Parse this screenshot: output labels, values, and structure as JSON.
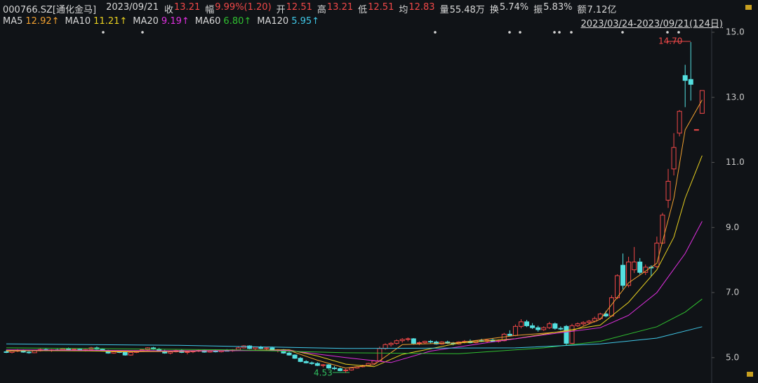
{
  "header": {
    "symbol": "000766.SZ[通化金马]",
    "date": "2023/09/21",
    "stats": [
      {
        "label": "收",
        "value": "13.21",
        "color": "#f04848"
      },
      {
        "label": "幅",
        "value": "9.99%(1.20)",
        "color": "#f04848"
      },
      {
        "label": "开",
        "value": "12.51",
        "color": "#f04848"
      },
      {
        "label": "高",
        "value": "13.21",
        "color": "#f04848"
      },
      {
        "label": "低",
        "value": "12.51",
        "color": "#f04848"
      },
      {
        "label": "均",
        "value": "12.83",
        "color": "#f04848"
      },
      {
        "label": "量",
        "value": "55.48万",
        "color": "#d8d8d8"
      },
      {
        "label": "换",
        "value": "5.74%",
        "color": "#d8d8d8"
      },
      {
        "label": "振",
        "value": "5.83%",
        "color": "#d8d8d8"
      },
      {
        "label": "额",
        "value": "7.12亿",
        "color": "#d8d8d8"
      }
    ]
  },
  "chart_data": {
    "type": "candlestick",
    "range_label": "2023/03/24-2023/09/21(124日)",
    "ylim": [
      4.22,
      15.13
    ],
    "yticks": [
      {
        "value": 15,
        "label": "15.0"
      },
      {
        "value": 13,
        "label": "13.0"
      },
      {
        "value": 11,
        "label": "11.0"
      },
      {
        "value": 9,
        "label": "9.0"
      },
      {
        "value": 7,
        "label": "7.0"
      },
      {
        "value": 5,
        "label": "5.0"
      }
    ],
    "up_color": "#f04848",
    "down_color": "#54e0e0",
    "annotations": [
      "14.70",
      "4.53"
    ],
    "ohlc": [
      [
        5.18,
        5.24,
        5.14,
        5.16
      ],
      [
        5.16,
        5.22,
        5.13,
        5.2
      ],
      [
        5.2,
        5.26,
        5.17,
        5.22
      ],
      [
        5.22,
        5.25,
        5.15,
        5.17
      ],
      [
        5.17,
        5.2,
        5.12,
        5.15
      ],
      [
        5.15,
        5.22,
        5.14,
        5.21
      ],
      [
        5.21,
        5.28,
        5.19,
        5.25
      ],
      [
        5.25,
        5.29,
        5.2,
        5.22
      ],
      [
        5.22,
        5.26,
        5.18,
        5.24
      ],
      [
        5.24,
        5.27,
        5.2,
        5.23
      ],
      [
        5.23,
        5.3,
        5.21,
        5.27
      ],
      [
        5.27,
        5.31,
        5.22,
        5.24
      ],
      [
        5.24,
        5.28,
        5.2,
        5.26
      ],
      [
        5.26,
        5.29,
        5.21,
        5.22
      ],
      [
        5.22,
        5.27,
        5.19,
        5.25
      ],
      [
        5.25,
        5.33,
        5.23,
        5.3
      ],
      [
        5.3,
        5.34,
        5.24,
        5.26
      ],
      [
        5.26,
        5.29,
        5.2,
        5.22
      ],
      [
        5.22,
        5.24,
        5.12,
        5.14
      ],
      [
        5.14,
        5.2,
        5.12,
        5.18
      ],
      [
        5.18,
        5.22,
        5.14,
        5.16
      ],
      [
        5.16,
        5.18,
        5.06,
        5.08
      ],
      [
        5.08,
        5.18,
        5.06,
        5.16
      ],
      [
        5.16,
        5.22,
        5.14,
        5.2
      ],
      [
        5.2,
        5.26,
        5.18,
        5.24
      ],
      [
        5.24,
        5.32,
        5.22,
        5.3
      ],
      [
        5.3,
        5.33,
        5.24,
        5.26
      ],
      [
        5.26,
        5.3,
        5.18,
        5.2
      ],
      [
        5.2,
        5.24,
        5.12,
        5.14
      ],
      [
        5.14,
        5.2,
        5.1,
        5.18
      ],
      [
        5.18,
        5.24,
        5.16,
        5.22
      ],
      [
        5.22,
        5.25,
        5.14,
        5.16
      ],
      [
        5.16,
        5.2,
        5.1,
        5.18
      ],
      [
        5.18,
        5.22,
        5.14,
        5.2
      ],
      [
        5.2,
        5.25,
        5.17,
        5.22
      ],
      [
        5.22,
        5.24,
        5.15,
        5.17
      ],
      [
        5.17,
        5.22,
        5.15,
        5.2
      ],
      [
        5.2,
        5.24,
        5.16,
        5.18
      ],
      [
        5.18,
        5.24,
        5.16,
        5.22
      ],
      [
        5.22,
        5.26,
        5.19,
        5.21
      ],
      [
        5.21,
        5.26,
        5.18,
        5.24
      ],
      [
        5.24,
        5.33,
        5.22,
        5.3
      ],
      [
        5.3,
        5.38,
        5.28,
        5.36
      ],
      [
        5.36,
        5.38,
        5.26,
        5.28
      ],
      [
        5.28,
        5.34,
        5.24,
        5.32
      ],
      [
        5.32,
        5.36,
        5.26,
        5.28
      ],
      [
        5.28,
        5.32,
        5.22,
        5.3
      ],
      [
        5.3,
        5.34,
        5.2,
        5.22
      ],
      [
        5.22,
        5.26,
        5.16,
        5.24
      ],
      [
        5.24,
        5.26,
        5.12,
        5.14
      ],
      [
        5.14,
        5.18,
        5.06,
        5.08
      ],
      [
        5.08,
        5.1,
        4.96,
        4.98
      ],
      [
        4.98,
        5.02,
        4.86,
        4.88
      ],
      [
        4.88,
        4.92,
        4.82,
        4.84
      ],
      [
        4.84,
        4.88,
        4.78,
        4.82
      ],
      [
        4.82,
        4.86,
        4.74,
        4.76
      ],
      [
        4.76,
        4.8,
        4.7,
        4.78
      ],
      [
        4.78,
        4.8,
        4.66,
        4.68
      ],
      [
        4.68,
        4.74,
        4.62,
        4.66
      ],
      [
        4.66,
        4.7,
        4.58,
        4.6
      ],
      [
        4.6,
        4.66,
        4.53,
        4.62
      ],
      [
        4.62,
        4.7,
        4.6,
        4.68
      ],
      [
        4.68,
        4.74,
        4.66,
        4.72
      ],
      [
        4.72,
        4.78,
        4.7,
        4.76
      ],
      [
        4.76,
        4.84,
        4.74,
        4.82
      ],
      [
        4.82,
        4.92,
        4.8,
        4.9
      ],
      [
        4.9,
        5.34,
        4.88,
        5.28
      ],
      [
        5.28,
        5.44,
        5.24,
        5.4
      ],
      [
        5.4,
        5.48,
        5.34,
        5.44
      ],
      [
        5.44,
        5.56,
        5.4,
        5.52
      ],
      [
        5.52,
        5.6,
        5.46,
        5.56
      ],
      [
        5.56,
        5.62,
        5.5,
        5.58
      ],
      [
        5.58,
        5.6,
        5.4,
        5.44
      ],
      [
        5.44,
        5.5,
        5.38,
        5.46
      ],
      [
        5.46,
        5.52,
        5.42,
        5.5
      ],
      [
        5.5,
        5.54,
        5.44,
        5.48
      ],
      [
        5.48,
        5.52,
        5.4,
        5.42
      ],
      [
        5.42,
        5.5,
        5.4,
        5.48
      ],
      [
        5.48,
        5.52,
        5.42,
        5.44
      ],
      [
        5.44,
        5.48,
        5.38,
        5.42
      ],
      [
        5.42,
        5.5,
        5.4,
        5.48
      ],
      [
        5.48,
        5.54,
        5.44,
        5.5
      ],
      [
        5.5,
        5.56,
        5.44,
        5.46
      ],
      [
        5.46,
        5.54,
        5.44,
        5.52
      ],
      [
        5.52,
        5.58,
        5.48,
        5.5
      ],
      [
        5.5,
        5.56,
        5.46,
        5.54
      ],
      [
        5.54,
        5.6,
        5.48,
        5.5
      ],
      [
        5.5,
        5.56,
        5.46,
        5.52
      ],
      [
        5.52,
        5.76,
        5.5,
        5.72
      ],
      [
        5.72,
        5.84,
        5.66,
        5.68
      ],
      [
        5.68,
        6.02,
        5.66,
        5.96
      ],
      [
        5.96,
        6.18,
        5.9,
        6.1
      ],
      [
        6.1,
        6.16,
        5.94,
        5.98
      ],
      [
        5.98,
        6.06,
        5.88,
        5.92
      ],
      [
        5.92,
        5.98,
        5.8,
        5.86
      ],
      [
        5.86,
        5.96,
        5.82,
        5.92
      ],
      [
        5.92,
        6.1,
        5.88,
        6.04
      ],
      [
        6.04,
        6.08,
        5.86,
        5.9
      ],
      [
        5.9,
        5.96,
        5.84,
        5.88
      ],
      [
        5.96,
        6.0,
        5.38,
        5.44
      ],
      [
        5.44,
        6.04,
        5.42,
        5.98
      ],
      [
        5.98,
        6.08,
        5.94,
        6.04
      ],
      [
        6.04,
        6.12,
        5.98,
        6.08
      ],
      [
        6.08,
        6.16,
        6.02,
        6.12
      ],
      [
        6.12,
        6.26,
        6.08,
        6.2
      ],
      [
        6.2,
        6.38,
        6.16,
        6.34
      ],
      [
        6.34,
        6.44,
        6.24,
        6.28
      ],
      [
        6.28,
        6.92,
        6.26,
        6.84
      ],
      [
        6.84,
        7.56,
        6.8,
        7.52
      ],
      [
        7.84,
        8.2,
        7.1,
        7.22
      ],
      [
        7.22,
        8.1,
        7.16,
        7.94
      ],
      [
        7.7,
        8.4,
        7.6,
        7.94
      ],
      [
        7.94,
        8.06,
        7.56,
        7.62
      ],
      [
        7.62,
        7.86,
        7.54,
        7.78
      ],
      [
        7.78,
        7.84,
        7.5,
        7.76
      ],
      [
        7.8,
        8.72,
        7.76,
        8.52
      ],
      [
        8.52,
        9.45,
        8.5,
        9.38
      ],
      [
        9.84,
        10.8,
        9.6,
        10.42
      ],
      [
        10.8,
        11.9,
        10.6,
        11.46
      ],
      [
        11.9,
        12.61,
        11.8,
        12.57
      ],
      [
        13.67,
        14.0,
        12.7,
        13.52
      ],
      [
        13.55,
        14.7,
        12.9,
        13.4
      ],
      [
        12.01,
        12.01,
        12.01,
        12.01
      ],
      [
        12.51,
        13.21,
        12.51,
        13.21
      ]
    ],
    "series": [
      {
        "name": "MA5",
        "legend_value": "12.92↑",
        "color": "#f0a030",
        "x": [
          0,
          10,
          20,
          30,
          40,
          50,
          55,
          60,
          65,
          70,
          80,
          90,
          100,
          105,
          110,
          115,
          118,
          120,
          123
        ],
        "values": [
          5.2,
          5.24,
          5.18,
          5.19,
          5.22,
          5.22,
          4.92,
          4.68,
          4.78,
          5.4,
          5.46,
          5.68,
          5.82,
          6.18,
          7.3,
          7.9,
          9.9,
          12.0,
          12.92
        ]
      },
      {
        "name": "MA10",
        "legend_value": "11.21↑",
        "color": "#e8d020",
        "x": [
          0,
          20,
          40,
          50,
          55,
          60,
          65,
          70,
          80,
          90,
          100,
          105,
          110,
          115,
          118,
          120,
          123
        ],
        "values": [
          5.22,
          5.2,
          5.22,
          5.24,
          5.05,
          4.8,
          4.72,
          5.1,
          5.45,
          5.58,
          5.86,
          6.0,
          6.7,
          7.7,
          8.7,
          9.9,
          11.21
        ]
      },
      {
        "name": "MA20",
        "legend_value": "9.19↑",
        "color": "#e030e0",
        "x": [
          0,
          30,
          50,
          60,
          68,
          75,
          85,
          95,
          105,
          110,
          115,
          120,
          123
        ],
        "values": [
          5.24,
          5.21,
          5.22,
          5.0,
          4.85,
          5.2,
          5.46,
          5.7,
          5.92,
          6.3,
          7.0,
          8.2,
          9.19
        ]
      },
      {
        "name": "MA60",
        "legend_value": "6.80↑",
        "color": "#30c030",
        "x": [
          0,
          40,
          60,
          80,
          95,
          105,
          115,
          120,
          123
        ],
        "values": [
          5.3,
          5.24,
          5.15,
          5.12,
          5.3,
          5.5,
          5.95,
          6.4,
          6.8
        ]
      },
      {
        "name": "MA120",
        "legend_value": "5.95↑",
        "color": "#40c8e8",
        "x": [
          0,
          30,
          60,
          90,
          105,
          115,
          123
        ],
        "values": [
          5.42,
          5.38,
          5.28,
          5.3,
          5.42,
          5.6,
          5.95
        ]
      }
    ]
  }
}
